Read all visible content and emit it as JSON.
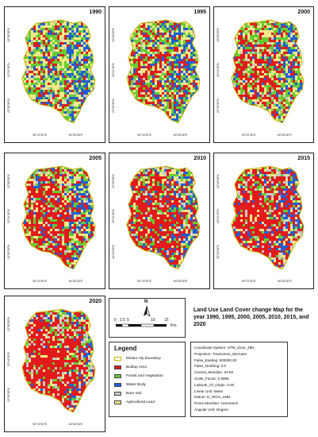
{
  "panels": [
    {
      "year": "1990",
      "ticks_x": [
        "90°22'30\"E",
        "90°26'30\"E"
      ],
      "ticks_y": [
        "23°48'30\"N",
        "23°44'30\"N",
        "23°40'30\"N"
      ]
    },
    {
      "year": "1995",
      "ticks_x": [
        "90°22'30\"E",
        "90°26'30\"E"
      ],
      "ticks_y": [
        "23°48'30\"N",
        "23°44'30\"N",
        "23°40'30\"N"
      ]
    },
    {
      "year": "2000",
      "ticks_x": [
        "90°22'30\"E",
        "90°26'30\"E"
      ],
      "ticks_y": [
        "23°48'30\"N",
        "23°44'30\"N",
        "23°40'30\"N"
      ]
    },
    {
      "year": "2005",
      "ticks_x": [
        "90°22'30\"E",
        "90°26'30\"E"
      ],
      "ticks_y": [
        "23°48'30\"N",
        "23°44'30\"N",
        "23°40'30\"N"
      ]
    },
    {
      "year": "2010",
      "ticks_x": [
        "90°22'30\"E",
        "90°26'30\"E"
      ],
      "ticks_y": [
        "23°48'30\"N",
        "23°44'30\"N",
        "23°40'30\"N"
      ]
    },
    {
      "year": "2015",
      "ticks_x": [
        "90°22'30\"E",
        "90°26'30\"E"
      ],
      "ticks_y": [
        "23°48'30\"N",
        "23°44'30\"N",
        "23°40'30\"N"
      ]
    },
    {
      "year": "2020",
      "ticks_x": [
        "90°22'30\"E",
        "90°26'30\"E"
      ],
      "ticks_y": [
        "23°48'30\"N",
        "23°44'30\"N",
        "23°40'30\"N"
      ]
    }
  ],
  "north_label": "N",
  "scale": {
    "ticks": [
      "0",
      "2.5",
      "5",
      "10",
      "15"
    ],
    "unit": "Km"
  },
  "legend": {
    "title": "Legend",
    "items": [
      {
        "label": "Dhaka city boundary",
        "color": "#ffffff",
        "border": "#c8b400"
      },
      {
        "label": "Builtup Area",
        "color": "#e31a1c"
      },
      {
        "label": "Forest and Vegetation",
        "color": "#66cc33"
      },
      {
        "label": "Water Body",
        "color": "#1f5fd6"
      },
      {
        "label": "Bare Soil",
        "color": "#c8c8c8"
      },
      {
        "label": "Agricultural Land",
        "color": "#f3e98a"
      }
    ]
  },
  "map_title": "Land Use Land Cover change Map for the year 1990, 1995, 2000, 2005, 2010, 2015, and 2020",
  "coordinate_info": [
    "Coordinate System:  UTM_Zone_46N",
    "Projection:  Transverse_Mercator",
    "False_Easting:  500000.00",
    "False_Northing:  0.0",
    "Central_Meridian:  93.00",
    "Scale_Factor:  0.9996",
    "Latitude_Of_Origin:  0.00",
    "Linear Unit:   Meter",
    "Datum:   D_WGS_1984",
    "Prime Meridian:   Greenwich",
    "Angular Unit:   Degree"
  ],
  "landcover_mix": [
    {
      "built": 0.15,
      "forest": 0.3,
      "water": 0.2,
      "bare": 0.05,
      "agri": 0.3
    },
    {
      "built": 0.25,
      "forest": 0.28,
      "water": 0.17,
      "bare": 0.05,
      "agri": 0.25
    },
    {
      "built": 0.3,
      "forest": 0.25,
      "water": 0.12,
      "bare": 0.06,
      "agri": 0.27
    },
    {
      "built": 0.45,
      "forest": 0.18,
      "water": 0.12,
      "bare": 0.07,
      "agri": 0.18
    },
    {
      "built": 0.48,
      "forest": 0.16,
      "water": 0.14,
      "bare": 0.08,
      "agri": 0.14
    },
    {
      "built": 0.52,
      "forest": 0.12,
      "water": 0.12,
      "bare": 0.12,
      "agri": 0.12
    },
    {
      "built": 0.58,
      "forest": 0.12,
      "water": 0.06,
      "bare": 0.14,
      "agri": 0.1
    }
  ]
}
